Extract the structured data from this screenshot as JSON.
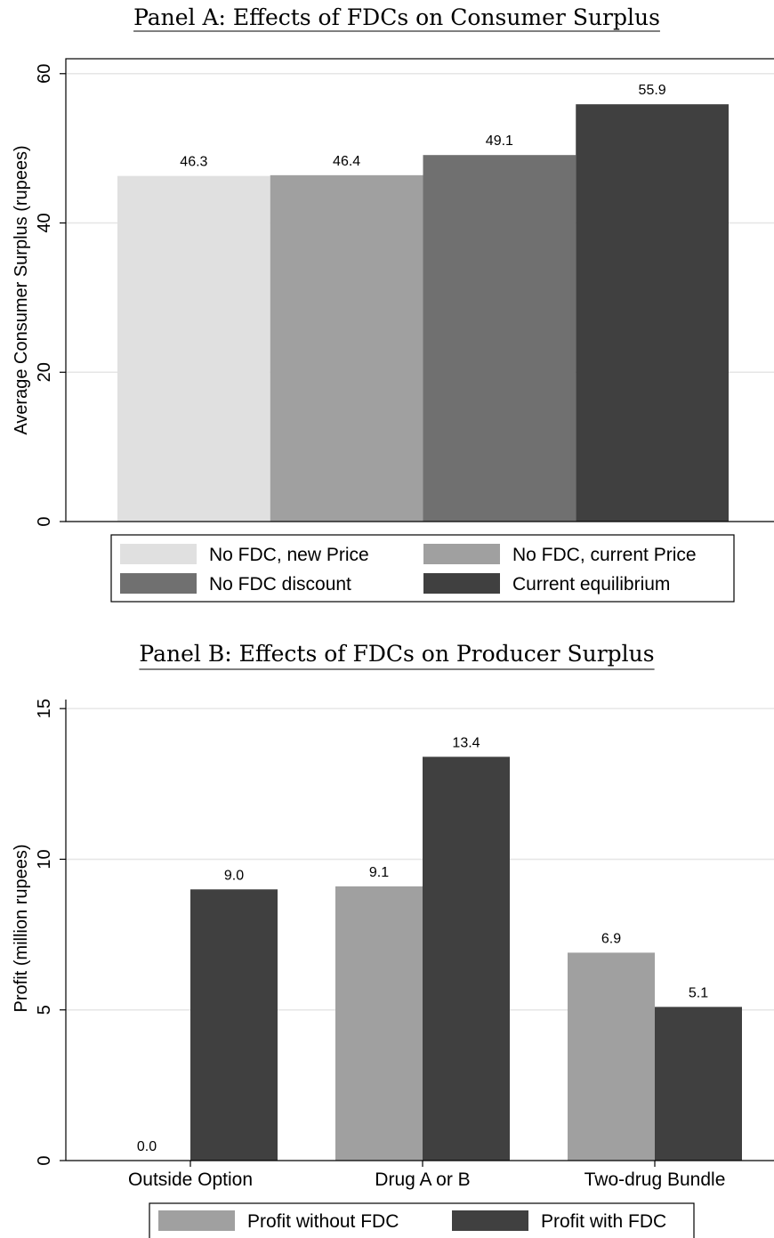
{
  "colors": {
    "no_fdc_new_price": "#e0e0e0",
    "no_fdc_current_price": "#a0a0a0",
    "no_fdc_discount": "#707070",
    "current_equilibrium": "#404040",
    "profit_without_fdc": "#a0a0a0",
    "profit_with_fdc": "#404040",
    "gridline": "#e6e6e6"
  },
  "chart_data": [
    {
      "type": "bar",
      "title": "Panel A: Effects of FDCs on Consumer Surplus",
      "xlabel": "",
      "ylabel": "Average Consumer Surplus (rupees)",
      "ylim": [
        0,
        62
      ],
      "yticks": [
        0,
        20,
        40,
        60
      ],
      "grid": true,
      "legend_placement": "bottom",
      "series": [
        {
          "name": "No FDC, new Price",
          "value": 46.3,
          "label": "46.3"
        },
        {
          "name": "No FDC, current Price",
          "value": 46.4,
          "label": "46.4"
        },
        {
          "name": "No FDC discount",
          "value": 49.1,
          "label": "49.1"
        },
        {
          "name": "Current equilibrium",
          "value": 55.9,
          "label": "55.9"
        }
      ]
    },
    {
      "type": "bar",
      "title": "Panel B: Effects of FDCs on Producer Surplus",
      "xlabel": "",
      "ylabel": "Profit (million rupees)",
      "ylim": [
        0,
        15.3
      ],
      "yticks": [
        0,
        5,
        10,
        15
      ],
      "grid": true,
      "legend_placement": "bottom",
      "categories": [
        "Outside Option",
        "Drug A or B",
        "Two-drug Bundle"
      ],
      "series": [
        {
          "name": "Profit without FDC",
          "values": [
            0.0,
            9.1,
            6.9
          ],
          "labels": [
            "0.0",
            "9.1",
            "6.9"
          ]
        },
        {
          "name": "Profit with FDC",
          "values": [
            9.0,
            13.4,
            5.1
          ],
          "labels": [
            "9.0",
            "13.4",
            "5.1"
          ]
        }
      ]
    }
  ]
}
